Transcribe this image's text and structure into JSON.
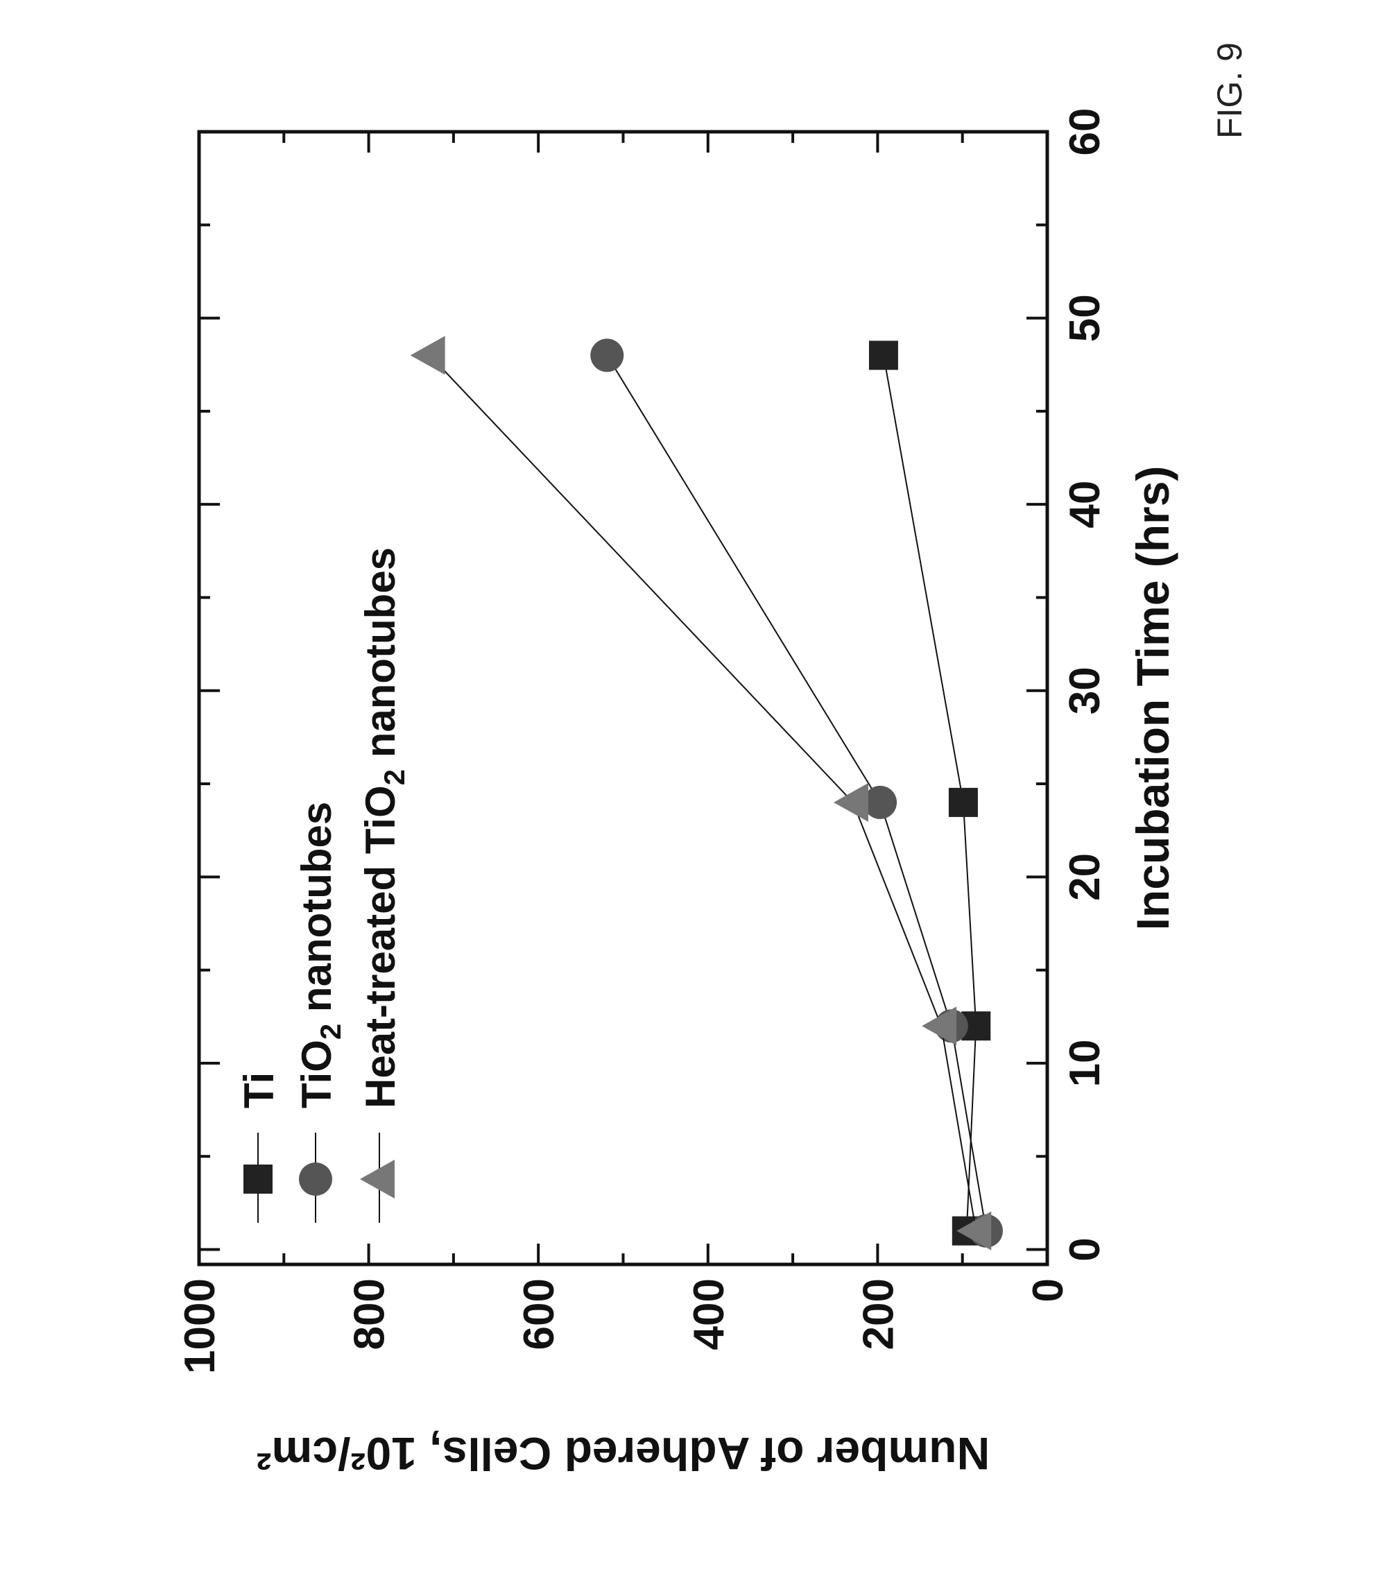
{
  "figure_label": "FIG. 9",
  "chart_data": {
    "type": "line",
    "title": "",
    "xlabel": "Incubation Time (hrs)",
    "ylabel": "Number of Adhered Cells, 10²/cm²",
    "xlim": [
      -0.8,
      60
    ],
    "ylim": [
      0,
      1000
    ],
    "xticks": [
      0,
      10,
      20,
      30,
      40,
      50,
      60
    ],
    "xtick_labels": [
      "0",
      "10",
      "20",
      "30",
      "40",
      "50",
      "60"
    ],
    "yticks": [
      0,
      200,
      400,
      600,
      800,
      1000
    ],
    "ytick_labels": [
      "0",
      "200",
      "400",
      "600",
      "800",
      "1000"
    ],
    "orientation": "rotated 90° counter-clockwise",
    "legend_position": "top-left",
    "grid": false,
    "x": [
      1,
      12,
      24,
      48
    ],
    "series": [
      {
        "name": "Ti",
        "marker": "square",
        "color": "#222222",
        "values": [
          95,
          84,
          99,
          193
        ]
      },
      {
        "name": "TiO2 nanotubes",
        "marker": "circle",
        "color": "#555555",
        "values": [
          72,
          113,
          197,
          519
        ]
      },
      {
        "name": "Heat-treated TiO2 nanotubes",
        "marker": "triangle",
        "color": "#777777",
        "values": [
          84,
          125,
          229,
          728
        ]
      }
    ]
  }
}
